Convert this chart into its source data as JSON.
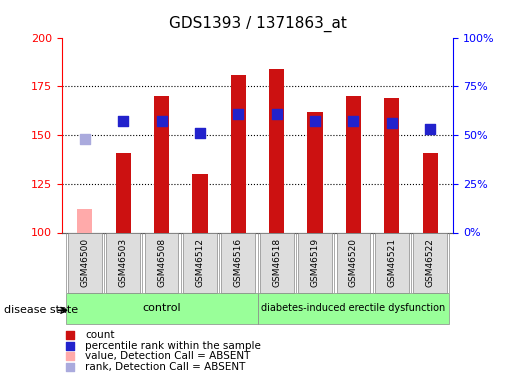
{
  "title": "GDS1393 / 1371863_at",
  "samples": [
    "GSM46500",
    "GSM46503",
    "GSM46508",
    "GSM46512",
    "GSM46516",
    "GSM46518",
    "GSM46519",
    "GSM46520",
    "GSM46521",
    "GSM46522"
  ],
  "counts": [
    112,
    141,
    170,
    130,
    181,
    184,
    162,
    170,
    169,
    141
  ],
  "ranks": [
    148,
    157,
    157,
    151,
    161,
    161,
    157,
    157,
    156,
    153
  ],
  "absent_flags": [
    true,
    false,
    false,
    false,
    false,
    false,
    false,
    false,
    false,
    false
  ],
  "ylim_left": [
    100,
    200
  ],
  "ylim_right": [
    0,
    100
  ],
  "left_ticks": [
    100,
    125,
    150,
    175,
    200
  ],
  "right_ticks": [
    0,
    25,
    50,
    75,
    100
  ],
  "right_tick_labels": [
    "0%",
    "25%",
    "50%",
    "75%",
    "100%"
  ],
  "bar_color_normal": "#cc1111",
  "bar_color_absent": "#ffaaaa",
  "rank_color_normal": "#2222cc",
  "rank_color_absent": "#aaaadd",
  "bar_width": 0.4,
  "rank_marker_size": 55,
  "control_label": "control",
  "disease_label": "diabetes-induced erectile dysfunction",
  "disease_state_label": "disease state",
  "group_color": "#99ff99",
  "tick_label_bg": "#dddddd",
  "grid_lines": [
    125,
    150,
    175
  ],
  "legend_items": [
    {
      "label": "count",
      "color": "#cc1111"
    },
    {
      "label": "percentile rank within the sample",
      "color": "#2222cc"
    },
    {
      "label": "value, Detection Call = ABSENT",
      "color": "#ffaaaa"
    },
    {
      "label": "rank, Detection Call = ABSENT",
      "color": "#aaaadd"
    }
  ]
}
